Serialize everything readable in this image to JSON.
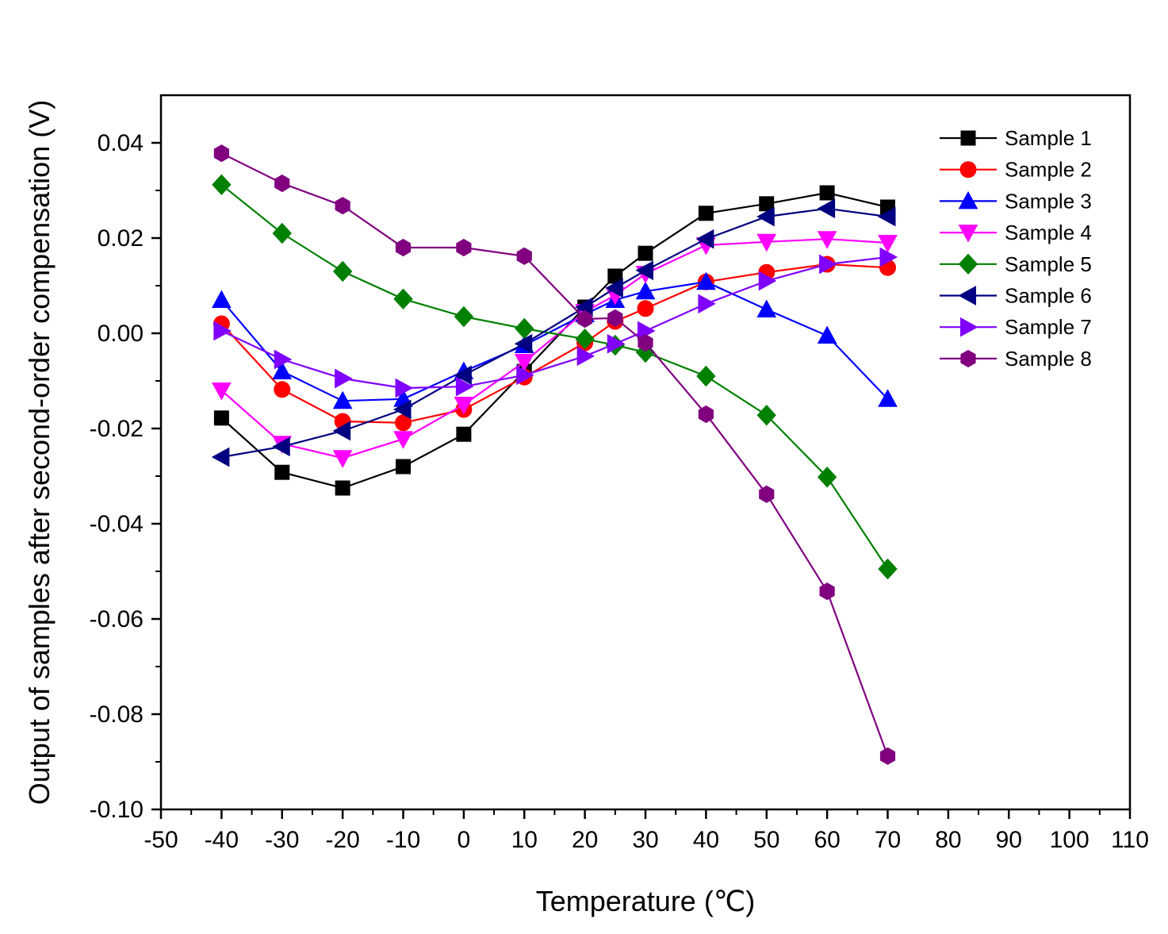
{
  "chart_data": {
    "type": "line",
    "xlabel": "Temperature (℃)",
    "ylabel": "Output of samples after second-order compensation (V)",
    "xlim": [
      -50,
      110
    ],
    "ylim": [
      -0.1,
      0.05
    ],
    "xticks": [
      -50,
      -40,
      -30,
      -20,
      -10,
      0,
      10,
      20,
      30,
      40,
      50,
      60,
      70,
      80,
      90,
      100,
      110
    ],
    "xtick_labels": [
      "-50",
      "-40",
      "-30",
      "-20",
      "-10",
      "0",
      "10",
      "20",
      "30",
      "40",
      "50",
      "60",
      "70",
      "80",
      "90",
      "100",
      "110"
    ],
    "yticks": [
      -0.1,
      -0.08,
      -0.06,
      -0.04,
      -0.02,
      0.0,
      0.02,
      0.04
    ],
    "ytick_labels": [
      "-0.10",
      "-0.08",
      "-0.06",
      "-0.04",
      "-0.02",
      "0.00",
      "0.02",
      "0.04"
    ],
    "x": [
      -40,
      -30,
      -20,
      -10,
      0,
      10,
      20,
      25,
      30,
      40,
      50,
      60,
      70
    ],
    "legend_position": "top-right",
    "grid": false,
    "series": [
      {
        "name": "Sample 1",
        "color": "#000000",
        "marker": "square",
        "values": [
          -0.0178,
          -0.0292,
          -0.0325,
          -0.028,
          -0.0212,
          -0.008,
          0.0055,
          0.012,
          0.0168,
          0.0252,
          0.0272,
          0.0295,
          0.0265
        ]
      },
      {
        "name": "Sample 2",
        "color": "#ff0000",
        "marker": "circle",
        "values": [
          0.002,
          -0.0118,
          -0.0185,
          -0.0188,
          -0.016,
          -0.0092,
          -0.002,
          0.0025,
          0.0052,
          0.0108,
          0.0128,
          0.0145,
          0.0138
        ]
      },
      {
        "name": "Sample 3",
        "color": "#0000ff",
        "marker": "triangle-up",
        "values": [
          0.007,
          -0.008,
          -0.0142,
          -0.0138,
          -0.008,
          -0.0025,
          0.004,
          0.007,
          0.0088,
          0.0108,
          0.005,
          -0.0005,
          -0.0138
        ]
      },
      {
        "name": "Sample 4",
        "color": "#ff00ff",
        "marker": "triangle-down",
        "values": [
          -0.012,
          -0.0232,
          -0.0262,
          -0.0222,
          -0.015,
          -0.006,
          0.0045,
          0.008,
          0.0125,
          0.0185,
          0.0192,
          0.0198,
          0.019
        ]
      },
      {
        "name": "Sample 5",
        "color": "#008000",
        "marker": "diamond",
        "values": [
          0.0312,
          0.021,
          0.013,
          0.0072,
          0.0035,
          0.001,
          -0.0012,
          -0.0025,
          -0.004,
          -0.009,
          -0.0172,
          -0.0302,
          -0.0495
        ]
      },
      {
        "name": "Sample 6",
        "color": "#000080",
        "marker": "triangle-left",
        "values": [
          -0.026,
          -0.0238,
          -0.0205,
          -0.016,
          -0.0088,
          -0.0022,
          0.0055,
          0.0095,
          0.0132,
          0.0198,
          0.0245,
          0.0262,
          0.0245
        ]
      },
      {
        "name": "Sample 7",
        "color": "#8000ff",
        "marker": "triangle-right",
        "values": [
          0.0005,
          -0.0055,
          -0.0095,
          -0.0115,
          -0.0112,
          -0.0088,
          -0.0048,
          -0.0022,
          0.0005,
          0.0062,
          0.011,
          0.0145,
          0.016
        ]
      },
      {
        "name": "Sample 8",
        "color": "#800080",
        "marker": "hexagon",
        "values": [
          0.0378,
          0.0315,
          0.0268,
          0.018,
          0.018,
          0.0162,
          0.003,
          0.0032,
          -0.002,
          -0.017,
          -0.0338,
          -0.0542,
          -0.0888
        ]
      }
    ]
  }
}
